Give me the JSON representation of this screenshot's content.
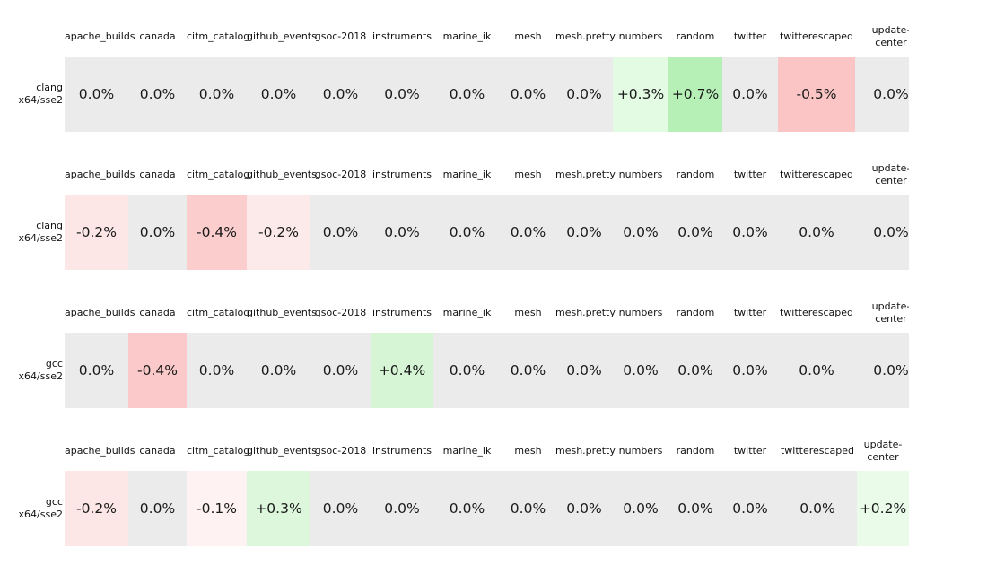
{
  "palette": {
    "zero_bg": "#ebebeb",
    "positive_strong": "#b7f0b7",
    "negative_strong": "#fcc5c5",
    "text": "#1a1a1a",
    "page_bg": "#ffffff"
  },
  "sections": [
    {
      "row_label": "clang\nx64/sse2",
      "columns": [
        "apache_builds",
        "canada",
        "citm_catalog",
        "github_events",
        "gsoc-2018",
        "instruments",
        "marine_ik",
        "mesh",
        "mesh.pretty",
        "numbers",
        "random",
        "twitter",
        "twitterescaped",
        "update-\ncenter"
      ],
      "cells": [
        {
          "text": "0.0%",
          "bg": "#ebebeb"
        },
        {
          "text": "0.0%",
          "bg": "#ebebeb"
        },
        {
          "text": "0.0%",
          "bg": "#ebebeb"
        },
        {
          "text": "0.0%",
          "bg": "#ebebeb"
        },
        {
          "text": "0.0%",
          "bg": "#ebebeb"
        },
        {
          "text": "0.0%",
          "bg": "#ebebeb"
        },
        {
          "text": "0.0%",
          "bg": "#ebebeb"
        },
        {
          "text": "0.0%",
          "bg": "#ebebeb"
        },
        {
          "text": "0.0%",
          "bg": "#ebebeb"
        },
        {
          "text": "+0.3%",
          "bg": "#e3fae3"
        },
        {
          "text": "+0.7%",
          "bg": "#b7f0b7"
        },
        {
          "text": "0.0%",
          "bg": "#ebebeb"
        },
        {
          "text": "-0.5%",
          "bg": "#fcc5c5"
        },
        {
          "text": "0.0%",
          "bg": "#ebebeb"
        }
      ]
    },
    {
      "row_label": "clang\nx64/sse2",
      "columns": [
        "apache_builds",
        "canada",
        "citm_catalog",
        "github_events",
        "gsoc-2018",
        "instruments",
        "marine_ik",
        "mesh",
        "mesh.pretty",
        "numbers",
        "random",
        "twitter",
        "twitterescaped",
        "update-\ncenter"
      ],
      "cells": [
        {
          "text": "-0.2%",
          "bg": "#fce6e6"
        },
        {
          "text": "0.0%",
          "bg": "#ebebeb"
        },
        {
          "text": "-0.4%",
          "bg": "#fbcdcd"
        },
        {
          "text": "-0.2%",
          "bg": "#fce9e9"
        },
        {
          "text": "0.0%",
          "bg": "#ebebeb"
        },
        {
          "text": "0.0%",
          "bg": "#ebebeb"
        },
        {
          "text": "0.0%",
          "bg": "#ebebeb"
        },
        {
          "text": "0.0%",
          "bg": "#ebebeb"
        },
        {
          "text": "0.0%",
          "bg": "#ebebeb"
        },
        {
          "text": "0.0%",
          "bg": "#ebebeb"
        },
        {
          "text": "0.0%",
          "bg": "#ebebeb"
        },
        {
          "text": "0.0%",
          "bg": "#ebebeb"
        },
        {
          "text": "0.0%",
          "bg": "#ebebeb"
        },
        {
          "text": "0.0%",
          "bg": "#ebebeb"
        }
      ]
    },
    {
      "row_label": "gcc\nx64/sse2",
      "columns": [
        "apache_builds",
        "canada",
        "citm_catalog",
        "github_events",
        "gsoc-2018",
        "instruments",
        "marine_ik",
        "mesh",
        "mesh.pretty",
        "numbers",
        "random",
        "twitter",
        "twitterescaped",
        "update-\ncenter"
      ],
      "cells": [
        {
          "text": "0.0%",
          "bg": "#ebebeb"
        },
        {
          "text": "-0.4%",
          "bg": "#fbc9c9"
        },
        {
          "text": "0.0%",
          "bg": "#ebebeb"
        },
        {
          "text": "0.0%",
          "bg": "#ebebeb"
        },
        {
          "text": "0.0%",
          "bg": "#ebebeb"
        },
        {
          "text": "+0.4%",
          "bg": "#d5f5d5"
        },
        {
          "text": "0.0%",
          "bg": "#ebebeb"
        },
        {
          "text": "0.0%",
          "bg": "#ebebeb"
        },
        {
          "text": "0.0%",
          "bg": "#ebebeb"
        },
        {
          "text": "0.0%",
          "bg": "#ebebeb"
        },
        {
          "text": "0.0%",
          "bg": "#ebebeb"
        },
        {
          "text": "0.0%",
          "bg": "#ebebeb"
        },
        {
          "text": "0.0%",
          "bg": "#ebebeb"
        },
        {
          "text": "0.0%",
          "bg": "#ebebeb"
        }
      ]
    },
    {
      "row_label": "gcc\nx64/sse2",
      "columns": [
        "apache_builds",
        "canada",
        "citm_catalog",
        "github_events",
        "gsoc-2018",
        "instruments",
        "marine_ik",
        "mesh",
        "mesh.pretty",
        "numbers",
        "random",
        "twitter",
        "twitterescaped",
        "update-\ncenter"
      ],
      "cells": [
        {
          "text": "-0.2%",
          "bg": "#fce6e6"
        },
        {
          "text": "0.0%",
          "bg": "#ebebeb"
        },
        {
          "text": "-0.1%",
          "bg": "#fef2f2"
        },
        {
          "text": "+0.3%",
          "bg": "#ddf7dd"
        },
        {
          "text": "0.0%",
          "bg": "#ebebeb"
        },
        {
          "text": "0.0%",
          "bg": "#ebebeb"
        },
        {
          "text": "0.0%",
          "bg": "#ebebeb"
        },
        {
          "text": "0.0%",
          "bg": "#ebebeb"
        },
        {
          "text": "0.0%",
          "bg": "#ebebeb"
        },
        {
          "text": "0.0%",
          "bg": "#ebebeb"
        },
        {
          "text": "0.0%",
          "bg": "#ebebeb"
        },
        {
          "text": "0.0%",
          "bg": "#ebebeb"
        },
        {
          "text": "0.0%",
          "bg": "#ebebeb"
        },
        {
          "text": "+0.2%",
          "bg": "#eafbea"
        }
      ]
    }
  ],
  "chart_data": {
    "type": "heatmap",
    "title": "",
    "categories": [
      "apache_builds",
      "canada",
      "citm_catalog",
      "github_events",
      "gsoc-2018",
      "instruments",
      "marine_ik",
      "mesh",
      "mesh.pretty",
      "numbers",
      "random",
      "twitter",
      "twitterescaped",
      "update-center"
    ],
    "series": [
      {
        "name": "clang x64/sse2",
        "values": [
          0.0,
          0.0,
          0.0,
          0.0,
          0.0,
          0.0,
          0.0,
          0.0,
          0.0,
          0.3,
          0.7,
          0.0,
          -0.5,
          0.0
        ]
      },
      {
        "name": "clang x64/sse2",
        "values": [
          -0.2,
          0.0,
          -0.4,
          -0.2,
          0.0,
          0.0,
          0.0,
          0.0,
          0.0,
          0.0,
          0.0,
          0.0,
          0.0,
          0.0
        ]
      },
      {
        "name": "gcc x64/sse2",
        "values": [
          0.0,
          -0.4,
          0.0,
          0.0,
          0.0,
          0.4,
          0.0,
          0.0,
          0.0,
          0.0,
          0.0,
          0.0,
          0.0,
          0.0
        ]
      },
      {
        "name": "gcc x64/sse2",
        "values": [
          -0.2,
          0.0,
          -0.1,
          0.3,
          0.0,
          0.0,
          0.0,
          0.0,
          0.0,
          0.0,
          0.0,
          0.0,
          0.0,
          0.2
        ]
      }
    ],
    "unit": "%",
    "value_range": [
      -0.5,
      0.7
    ],
    "colormap": {
      "negative": "red",
      "zero": "#ebebeb",
      "positive": "green"
    },
    "legend_position": "none",
    "grid": false
  }
}
